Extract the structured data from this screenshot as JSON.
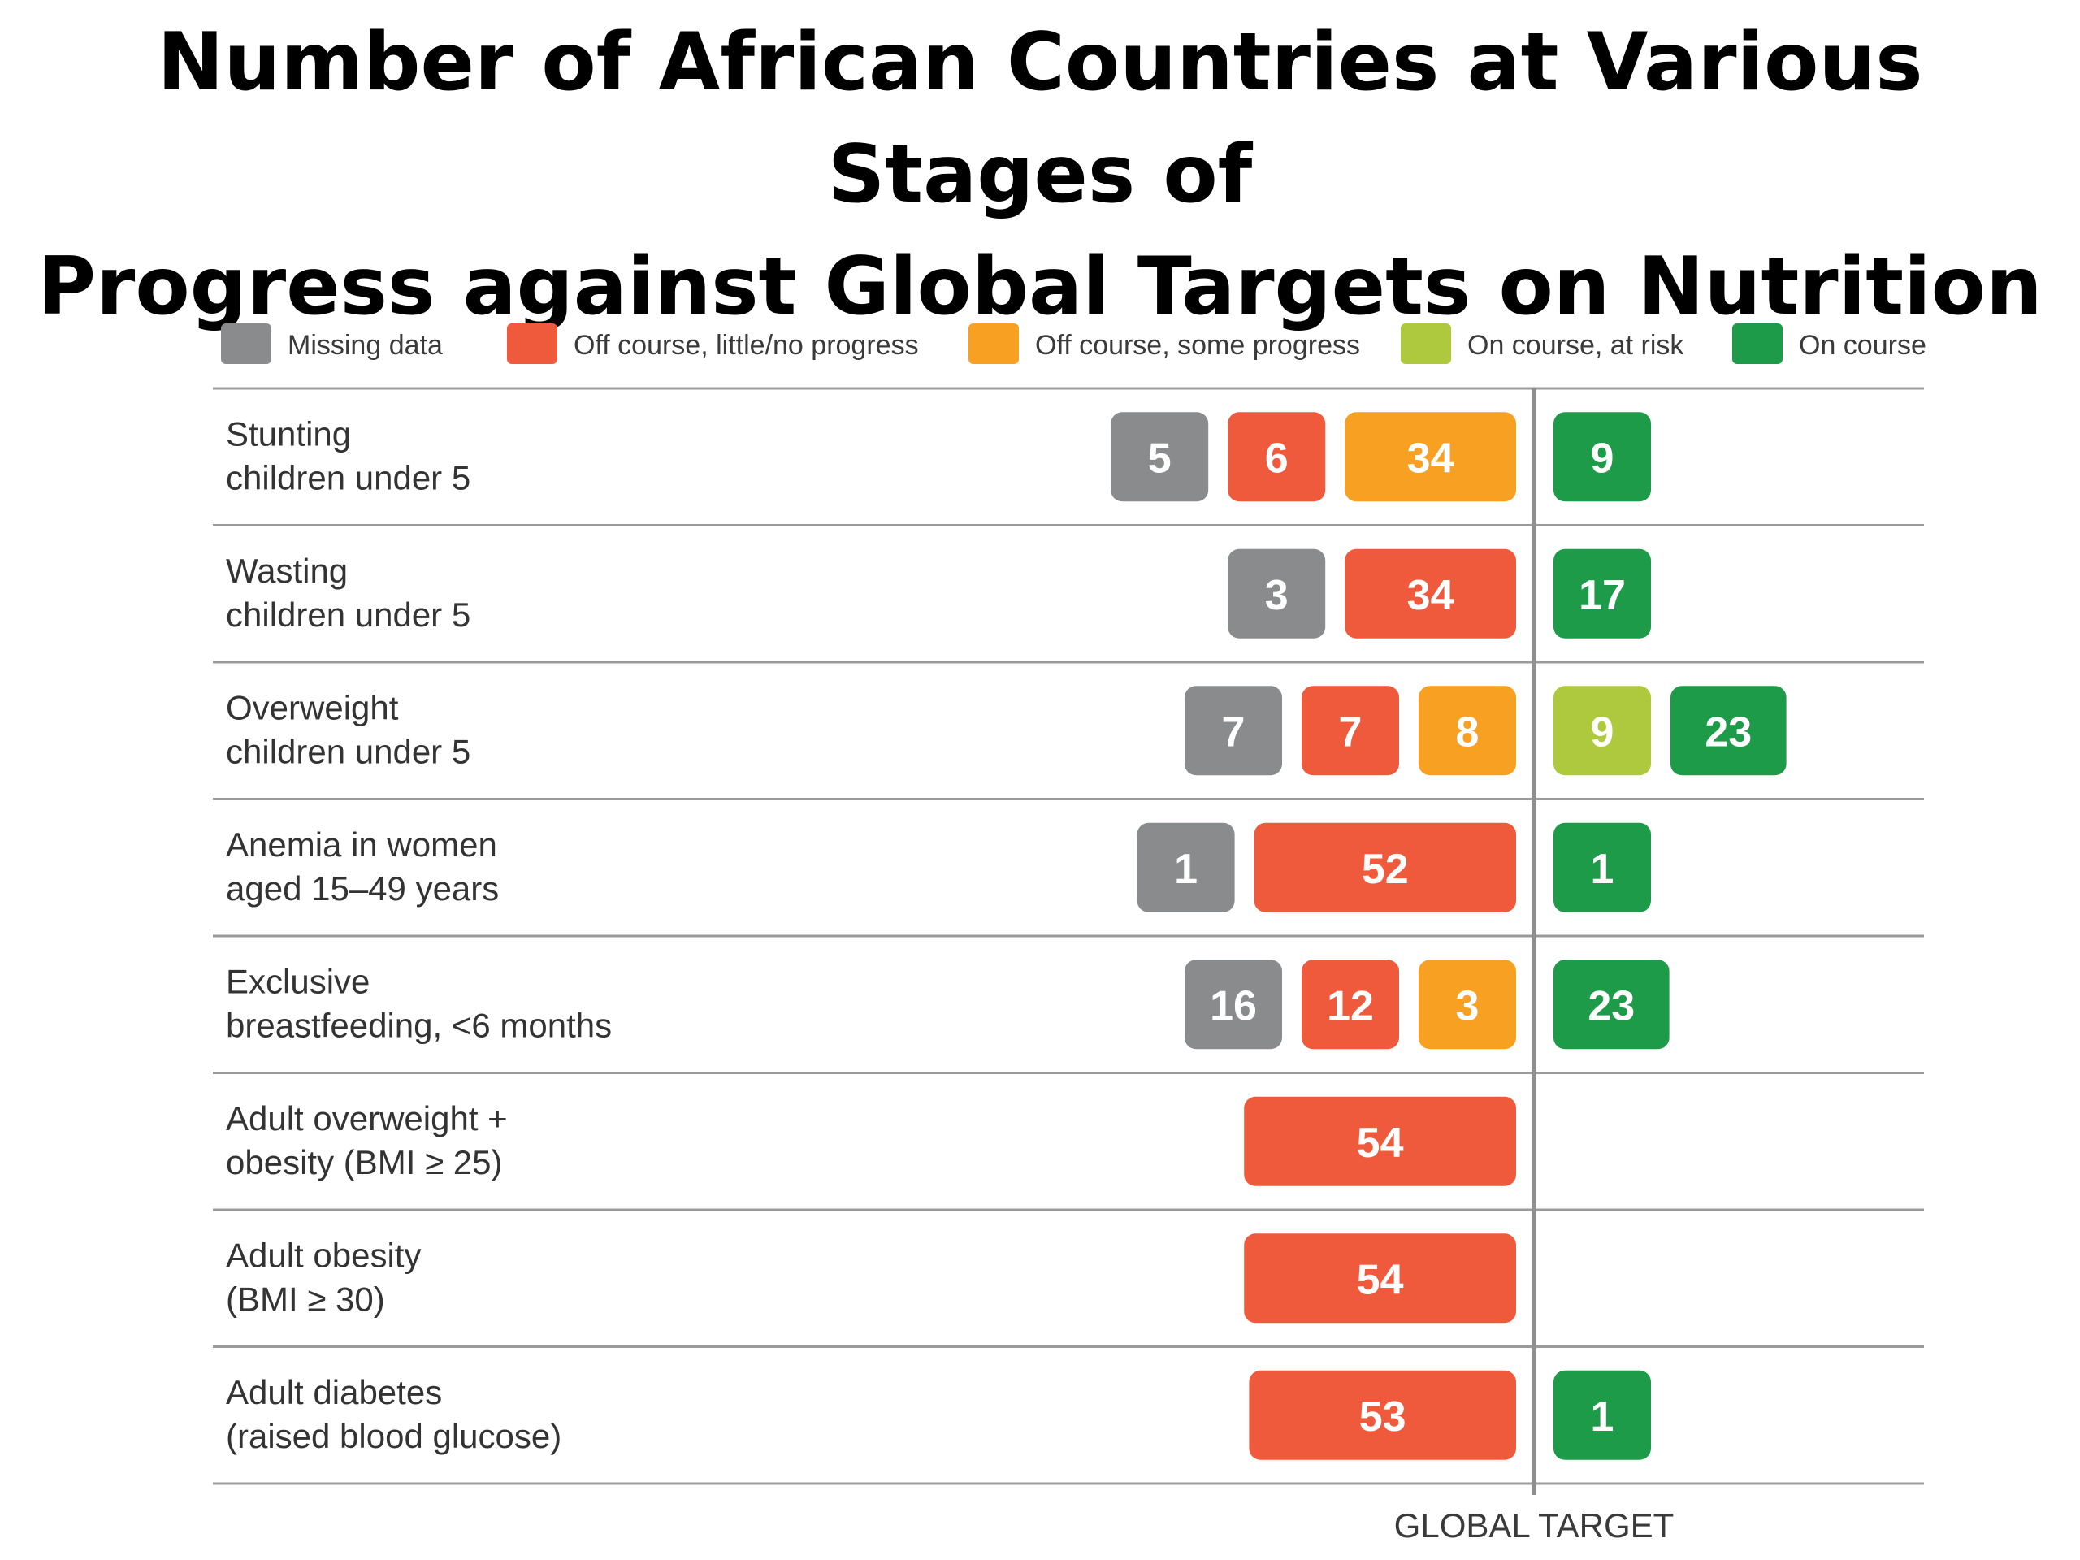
{
  "title_lines": [
    "Number of African Countries at Various Stages of",
    "Progress against Global Targets on Nutrition"
  ],
  "colors": {
    "missing": "#8A8B8D",
    "off_little": "#F05A3C",
    "off_some": "#F7A021",
    "on_risk": "#AFC93F",
    "on_course": "#1E9B48"
  },
  "chart_data": {
    "type": "bar",
    "orientation": "horizontal",
    "stacking": "diverging",
    "title": "Number of African Countries at Various Stages of Progress against Global Targets on Nutrition",
    "legend_position": "top",
    "reference_line_label": "GLOBAL TARGET",
    "categories": [
      "Stunting children under 5",
      "Wasting children under 5",
      "Overweight children under 5",
      "Anemia in women aged 15–49 years",
      "Exclusive breastfeeding, <6 months",
      "Adult overweight + obesity (BMI ≥ 25)",
      "Adult obesity (BMI ≥ 30)",
      "Adult diabetes (raised blood glucose)"
    ],
    "category_lines": [
      [
        "Stunting",
        "children under 5"
      ],
      [
        "Wasting",
        "children under 5"
      ],
      [
        "Overweight",
        "children under 5"
      ],
      [
        "Anemia in women",
        "aged 15–49 years"
      ],
      [
        "Exclusive",
        "breastfeeding, <6 months"
      ],
      [
        "Adult overweight +",
        "obesity (BMI ≥ 25)"
      ],
      [
        "Adult obesity",
        "(BMI ≥ 30)"
      ],
      [
        "Adult diabetes",
        "(raised blood glucose)"
      ]
    ],
    "series": [
      {
        "name": "Missing data",
        "key": "missing",
        "side": "left",
        "values": [
          5,
          3,
          7,
          1,
          16,
          0,
          0,
          0
        ]
      },
      {
        "name": "Off course, little/no progress",
        "key": "off_little",
        "side": "left",
        "values": [
          6,
          34,
          7,
          52,
          12,
          54,
          54,
          53
        ]
      },
      {
        "name": "Off course, some progress",
        "key": "off_some",
        "side": "left",
        "values": [
          34,
          0,
          8,
          0,
          3,
          0,
          0,
          0
        ]
      },
      {
        "name": "On course, at risk",
        "key": "on_risk",
        "side": "right",
        "values": [
          0,
          0,
          9,
          0,
          0,
          0,
          0,
          0
        ]
      },
      {
        "name": "On course",
        "key": "on_course",
        "side": "right",
        "values": [
          9,
          17,
          23,
          1,
          23,
          0,
          0,
          1
        ]
      }
    ]
  }
}
